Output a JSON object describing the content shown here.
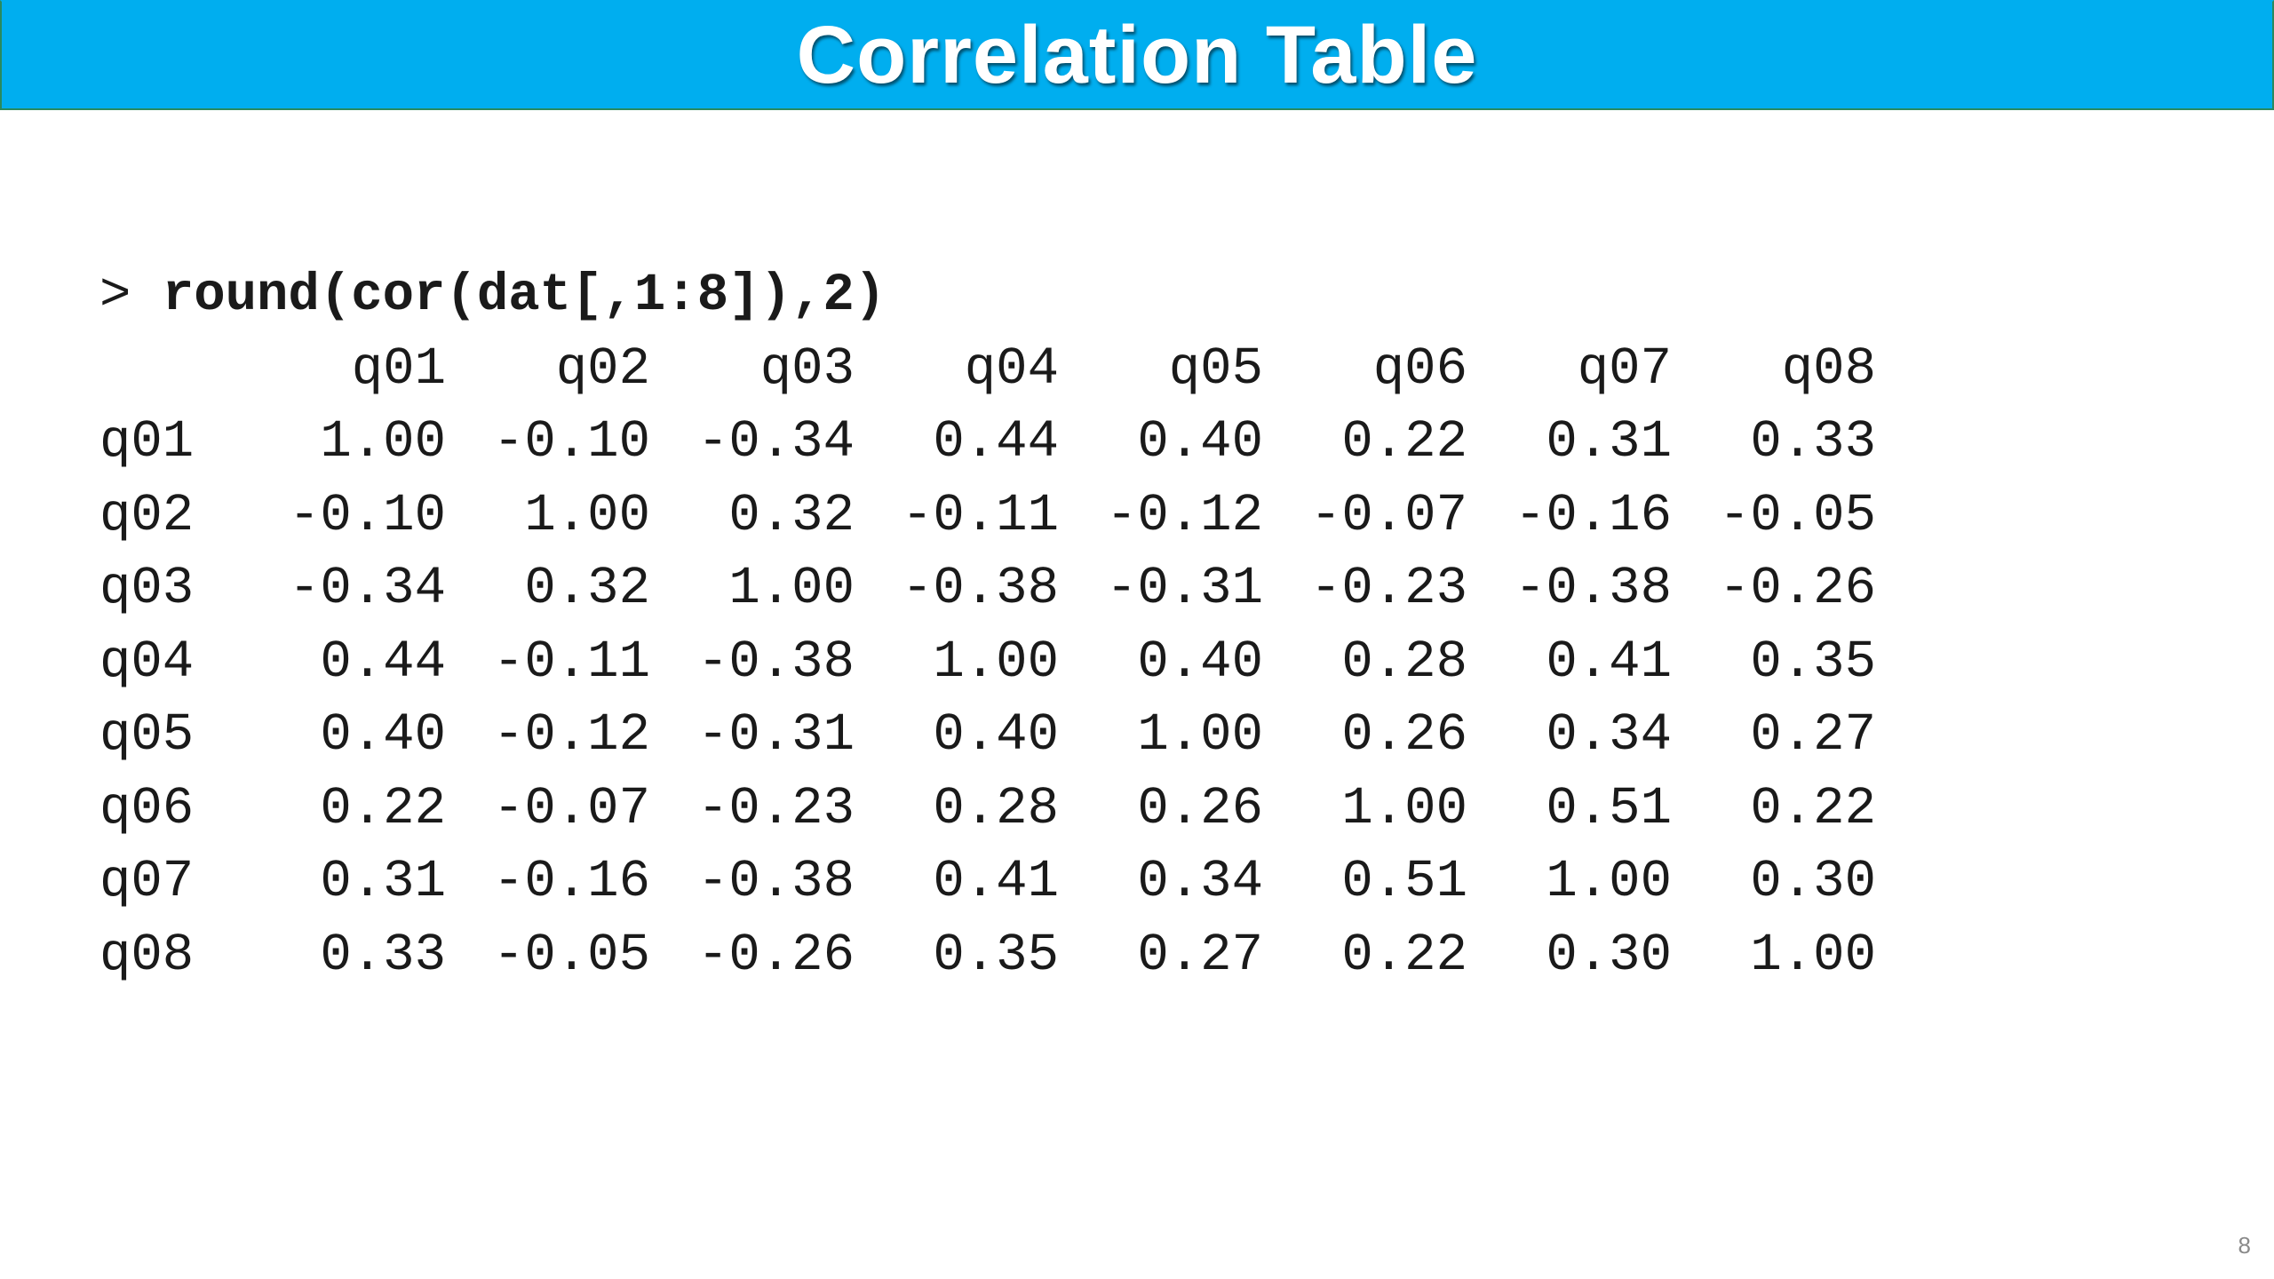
{
  "slide": {
    "title": "Correlation Table",
    "page_number": "8"
  },
  "console": {
    "prompt": ">",
    "command": "round(cor(dat[,1:8]),2)"
  },
  "table": {
    "columns": [
      "q01",
      "q02",
      "q03",
      "q04",
      "q05",
      "q06",
      "q07",
      "q08"
    ],
    "rows": [
      {
        "label": "q01",
        "values": [
          "1.00",
          "-0.10",
          "-0.34",
          "0.44",
          "0.40",
          "0.22",
          "0.31",
          "0.33"
        ]
      },
      {
        "label": "q02",
        "values": [
          "-0.10",
          "1.00",
          "0.32",
          "-0.11",
          "-0.12",
          "-0.07",
          "-0.16",
          "-0.05"
        ]
      },
      {
        "label": "q03",
        "values": [
          "-0.34",
          "0.32",
          "1.00",
          "-0.38",
          "-0.31",
          "-0.23",
          "-0.38",
          "-0.26"
        ]
      },
      {
        "label": "q04",
        "values": [
          "0.44",
          "-0.11",
          "-0.38",
          "1.00",
          "0.40",
          "0.28",
          "0.41",
          "0.35"
        ]
      },
      {
        "label": "q05",
        "values": [
          "0.40",
          "-0.12",
          "-0.31",
          "0.40",
          "1.00",
          "0.26",
          "0.34",
          "0.27"
        ]
      },
      {
        "label": "q06",
        "values": [
          "0.22",
          "-0.07",
          "-0.23",
          "0.28",
          "0.26",
          "1.00",
          "0.51",
          "0.22"
        ]
      },
      {
        "label": "q07",
        "values": [
          "0.31",
          "-0.16",
          "-0.38",
          "0.41",
          "0.34",
          "0.51",
          "1.00",
          "0.30"
        ]
      },
      {
        "label": "q08",
        "values": [
          "0.33",
          "-0.05",
          "-0.26",
          "0.35",
          "0.27",
          "0.22",
          "0.30",
          "1.00"
        ]
      }
    ]
  },
  "colors": {
    "title_bar": "#00AEEF",
    "title_text": "#FFFFFF",
    "code_text": "#1A1A1A"
  }
}
